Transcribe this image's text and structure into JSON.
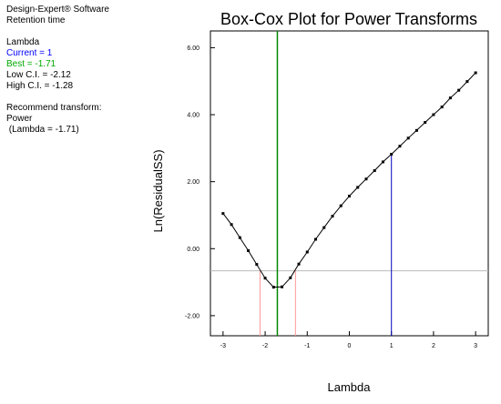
{
  "info": {
    "software": "Design-Expert® Software",
    "response": "Retention time",
    "lambda_heading": "Lambda",
    "current": "Current = 1",
    "best": "Best = -1.71",
    "low_ci": "Low C.I. = -2.12",
    "high_ci": "High C.I. = -1.28",
    "recommend_heading": "Recommend transform:",
    "transform": "Power",
    "transform_lambda": " (Lambda = -1.71)"
  },
  "colors": {
    "current": "#0000ff",
    "best": "#00aa00",
    "best_line": "#008800",
    "current_line": "#0000bb",
    "ci_line": "#ff9999",
    "ci_threshold": "#bbbbbb",
    "curve": "#000000"
  },
  "chart_data": {
    "type": "line",
    "title": "Box-Cox Plot for Power Transforms",
    "xlabel": "Lambda",
    "ylabel": "Ln(ResidualSS)",
    "xlim": [
      -3.3,
      3.3
    ],
    "ylim": [
      -2.6,
      6.5
    ],
    "xticks": [
      -3,
      -2,
      -1,
      0,
      1,
      2,
      3
    ],
    "xtick_labels": [
      "-3",
      "-2",
      "-1",
      "0",
      "1",
      "2",
      "3"
    ],
    "yticks": [
      -2,
      0,
      2,
      4,
      6
    ],
    "ytick_labels": [
      "-2.00",
      "0.00",
      "2.00",
      "4.00",
      "6.00"
    ],
    "series": [
      {
        "x": [
          -3.0,
          -2.8,
          -2.6,
          -2.4,
          -2.2,
          -2.0,
          -1.8,
          -1.6,
          -1.4,
          -1.2,
          -1.0,
          -0.8,
          -0.6,
          -0.4,
          -0.2,
          0.0,
          0.2,
          0.4,
          0.6,
          0.8,
          1.0,
          1.2,
          1.4,
          1.6,
          1.8,
          2.0,
          2.2,
          2.4,
          2.6,
          2.8,
          3.0
        ],
        "y": [
          1.05,
          0.72,
          0.33,
          -0.06,
          -0.47,
          -0.88,
          -1.15,
          -1.14,
          -0.87,
          -0.46,
          -0.1,
          0.28,
          0.63,
          0.97,
          1.28,
          1.57,
          1.83,
          2.08,
          2.33,
          2.59,
          2.82,
          3.06,
          3.3,
          3.53,
          3.77,
          4.0,
          4.23,
          4.5,
          4.73,
          4.99,
          5.25
        ]
      }
    ],
    "current_lambda": 1,
    "best_lambda": -1.71,
    "low_ci": -2.12,
    "high_ci": -1.28,
    "ci_threshold": -0.66,
    "grid": false
  }
}
